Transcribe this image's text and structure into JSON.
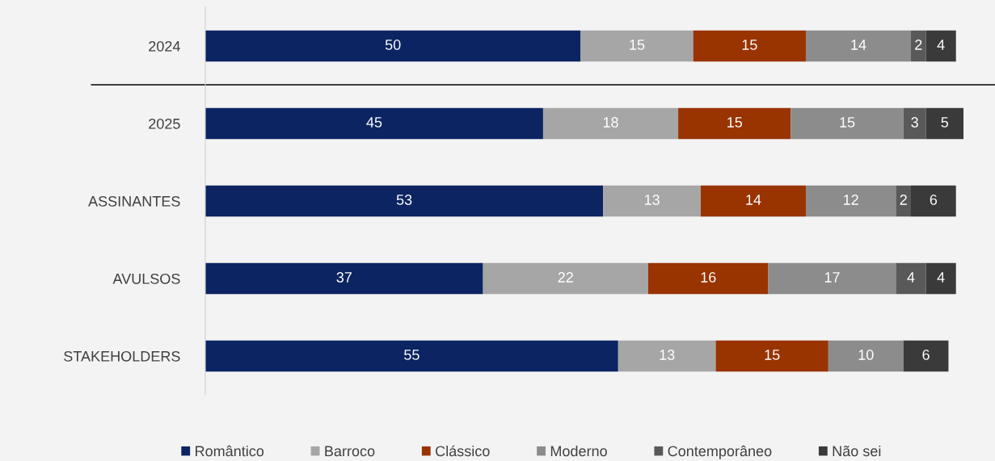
{
  "chart_data": {
    "type": "bar",
    "orientation": "horizontal",
    "stacked": true,
    "data_labels": true,
    "tick_labels": "y",
    "legend": "bottom",
    "grid": false,
    "xlim": [
      0,
      101
    ],
    "categories": [
      "2024",
      "2025",
      "ASSINANTES",
      "AVULSOS",
      "STAKEHOLDERS"
    ],
    "series": [
      {
        "name": "Romântico",
        "color": "#0c2461",
        "values": [
          50,
          45,
          53,
          37,
          55
        ]
      },
      {
        "name": "Barroco",
        "color": "#a6a6a6",
        "values": [
          15,
          18,
          13,
          22,
          13
        ]
      },
      {
        "name": "Clássico",
        "color": "#993300",
        "values": [
          15,
          15,
          14,
          16,
          15
        ]
      },
      {
        "name": "Moderno",
        "color": "#8c8c8c",
        "values": [
          14,
          15,
          12,
          17,
          10
        ]
      },
      {
        "name": "Contemporâneo",
        "color": "#595959",
        "values": [
          2,
          3,
          2,
          4,
          null
        ]
      },
      {
        "name": "Não sei",
        "color": "#3a3a3a",
        "values": [
          4,
          5,
          6,
          4,
          6
        ]
      }
    ]
  }
}
